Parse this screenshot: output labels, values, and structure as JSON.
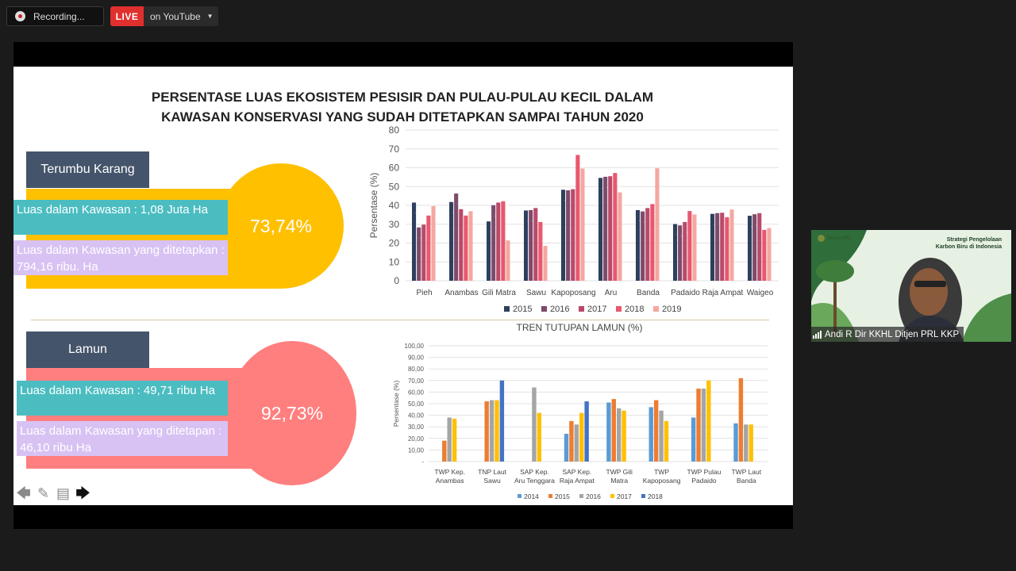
{
  "recording": {
    "label": "Recording..."
  },
  "live": {
    "badge": "LIVE",
    "destination": "on YouTube"
  },
  "slide": {
    "title_line1": "PERSENTASE LUAS EKOSISTEM PESISIR DAN PULAU-PULAU KECIL DALAM",
    "title_line2": "KAWASAN KONSERVASI YANG SUDAH DITETAPKAN SAMPAI TAHUN 2020",
    "terumbu": {
      "tag": "Terumbu Karang",
      "percent": "73,74%",
      "luas_kawasan": "Luas dalam Kawasan : 1,08 Juta Ha",
      "luas_ditetapkan": "Luas dalam Kawasan yang ditetapkan : 794,16 ribu. Ha",
      "band_color": "#ffc000"
    },
    "lamun": {
      "tag": "Lamun",
      "percent": "92,73%",
      "luas_kawasan": "Luas dalam Kawasan : 49,71 ribu Ha",
      "luas_ditetapkan": "Luas dalam Kawasan yang ditetapan : 46,10 ribu  Ha",
      "band_color": "#ff7f7f"
    }
  },
  "chart_data": [
    {
      "type": "bar",
      "title": "",
      "ylabel": "Persentase (%)",
      "xlabel": "",
      "ylim": [
        0,
        80
      ],
      "yticks": [
        "0",
        "10",
        "20",
        "30",
        "40",
        "50",
        "60",
        "70",
        "80"
      ],
      "grid": true,
      "legend": "bottom",
      "categories": [
        "Pieh",
        "Anambas",
        "Gili Matra",
        "Sawu",
        "Kapoposang",
        "Aru",
        "Banda",
        "Padaido",
        "Raja Ampat",
        "Waigeo"
      ],
      "series": [
        {
          "name": "2015",
          "color": "#2f3f5e",
          "values": [
            41.5,
            41.8,
            31.5,
            37.3,
            48.3,
            54.6,
            37.5,
            30.1,
            35.5,
            34.5
          ]
        },
        {
          "name": "2016",
          "color": "#7e4b6a",
          "values": [
            28.3,
            46.3,
            40.1,
            37.5,
            48.0,
            55.2,
            36.8,
            29.4,
            35.9,
            35.3
          ]
        },
        {
          "name": "2017",
          "color": "#b94a6a",
          "values": [
            29.8,
            38.0,
            41.5,
            38.6,
            48.6,
            55.5,
            38.6,
            31.2,
            36.1,
            35.9
          ]
        },
        {
          "name": "2018",
          "color": "#e8586e",
          "values": [
            34.6,
            34.6,
            42.2,
            31.2,
            66.8,
            57.2,
            40.7,
            37.0,
            33.7,
            27.0
          ]
        },
        {
          "name": "2019",
          "color": "#f4a7a0",
          "values": [
            39.6,
            36.9,
            21.4,
            18.5,
            59.6,
            46.9,
            59.7,
            35.2,
            37.8,
            28.0
          ]
        }
      ],
      "label_values": {
        "Pieh": [
          "41,5",
          "28,3",
          "29,8",
          "34,6",
          "39,6"
        ],
        "Anambas": [
          "41,8",
          "46,3",
          "38",
          "34,6",
          "36,9"
        ],
        "Gili Matra": [
          "31,5",
          "40,1",
          "41,5",
          "42,2",
          "21,4"
        ],
        "Sawu": [
          "37,3",
          "37,5",
          "38,6",
          "31,2",
          "18,5"
        ],
        "Kapoposang": [
          "48,3",
          "48",
          "48,6",
          "66,8",
          "59,6"
        ],
        "Aru": [
          "54,6",
          "55,2",
          "55,5",
          "57,2",
          "46,9"
        ],
        "Banda": [
          "37,5",
          "36,8",
          "38,6",
          "40,7",
          "59,7"
        ],
        "Padaido": [
          "30,1",
          "29,4",
          "31,2",
          "37",
          "35,2"
        ],
        "Raja Ampat": [
          "35,5",
          "35,9",
          "36,1",
          "33,7",
          "37,8"
        ],
        "Waigeo": [
          "34,5",
          "35,3",
          "35,9",
          "27",
          "28"
        ]
      }
    },
    {
      "type": "bar",
      "title": "TREN TUTUPAN LAMUN (%)",
      "ylabel": "Persentase (%)",
      "xlabel": "",
      "ylim": [
        0,
        100
      ],
      "yticks": [
        "-",
        "10,00",
        "20,00",
        "30,00",
        "40,00",
        "50,00",
        "60,00",
        "70,00",
        "80,00",
        "90,00",
        "100,00"
      ],
      "grid": true,
      "legend": "bottom",
      "categories": [
        "TWP Kep. Anambas",
        "TNP Laut Sawu",
        "SAP Kep. Aru Tenggara",
        "SAP Kep. Raja Ampat",
        "TWP Gili Matra",
        "TWP Kapoposang",
        "TWP Pulau Padaido",
        "TWP Laut Banda"
      ],
      "series": [
        {
          "name": "2014",
          "color": "#5b9bd5",
          "values": [
            0,
            0,
            0,
            24,
            51,
            47,
            38,
            33
          ]
        },
        {
          "name": "2015",
          "color": "#ed7d31",
          "values": [
            18,
            52,
            0,
            35,
            54,
            53,
            63,
            72
          ]
        },
        {
          "name": "2016",
          "color": "#a5a5a5",
          "values": [
            38,
            53,
            64,
            32,
            46,
            44,
            63,
            32
          ]
        },
        {
          "name": "2017",
          "color": "#ffc000",
          "values": [
            37,
            53,
            42,
            42,
            44,
            35,
            70,
            32
          ]
        },
        {
          "name": "2018",
          "color": "#4472c4",
          "values": [
            0,
            70,
            0,
            52,
            0,
            0,
            0,
            0
          ]
        }
      ]
    }
  ],
  "participant": {
    "name": "Andi R Dir KKHL Ditjen PRL KKP",
    "caption": "Strategi Pengelolaan Karbon Biru di Indonesia",
    "logo_text": "Dirjen PRL"
  },
  "tools": [
    "back-arrow-icon",
    "pen-icon",
    "menu-icon",
    "forward-arrow-icon"
  ]
}
